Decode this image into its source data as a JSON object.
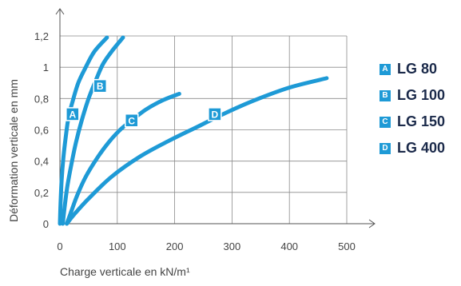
{
  "chart_data": {
    "type": "line",
    "xlabel": "Charge verticale en kN/m¹",
    "ylabel": "Déformation verticale en mm",
    "xlim": [
      0,
      500
    ],
    "ylim": [
      0,
      1.2
    ],
    "x_ticks": [
      "0",
      "100",
      "200",
      "300",
      "400",
      "500"
    ],
    "y_ticks": [
      "0",
      "0,2",
      "0,4",
      "0,6",
      "0,8",
      "1",
      "1,2"
    ],
    "grid": true,
    "legend_position": "right",
    "line_color": "#1e9ad6",
    "series": [
      {
        "name": "LG 80",
        "letter": "A",
        "marker": {
          "x": 22,
          "y": 0.7
        },
        "points": [
          [
            0,
            0
          ],
          [
            1,
            0.12
          ],
          [
            3,
            0.28
          ],
          [
            6,
            0.42
          ],
          [
            10,
            0.55
          ],
          [
            15,
            0.68
          ],
          [
            22,
            0.78
          ],
          [
            32,
            0.9
          ],
          [
            45,
            1.0
          ],
          [
            60,
            1.1
          ],
          [
            82,
            1.19
          ]
        ]
      },
      {
        "name": "LG 100",
        "letter": "B",
        "marker": {
          "x": 70,
          "y": 0.88
        },
        "points": [
          [
            5,
            0
          ],
          [
            8,
            0.1
          ],
          [
            13,
            0.24
          ],
          [
            20,
            0.38
          ],
          [
            28,
            0.52
          ],
          [
            38,
            0.66
          ],
          [
            50,
            0.8
          ],
          [
            63,
            0.92
          ],
          [
            75,
            1.02
          ],
          [
            90,
            1.1
          ],
          [
            110,
            1.19
          ]
        ]
      },
      {
        "name": "LG 150",
        "letter": "C",
        "marker": {
          "x": 125,
          "y": 0.66
        },
        "points": [
          [
            12,
            0
          ],
          [
            18,
            0.06
          ],
          [
            30,
            0.18
          ],
          [
            45,
            0.3
          ],
          [
            65,
            0.42
          ],
          [
            85,
            0.52
          ],
          [
            105,
            0.6
          ],
          [
            125,
            0.66
          ],
          [
            150,
            0.73
          ],
          [
            180,
            0.79
          ],
          [
            208,
            0.83
          ]
        ]
      },
      {
        "name": "LG 400",
        "letter": "D",
        "marker": {
          "x": 270,
          "y": 0.7
        },
        "points": [
          [
            12,
            0
          ],
          [
            25,
            0.06
          ],
          [
            50,
            0.16
          ],
          [
            90,
            0.3
          ],
          [
            140,
            0.43
          ],
          [
            190,
            0.53
          ],
          [
            240,
            0.62
          ],
          [
            290,
            0.71
          ],
          [
            340,
            0.79
          ],
          [
            400,
            0.87
          ],
          [
            465,
            0.93
          ]
        ]
      }
    ]
  }
}
